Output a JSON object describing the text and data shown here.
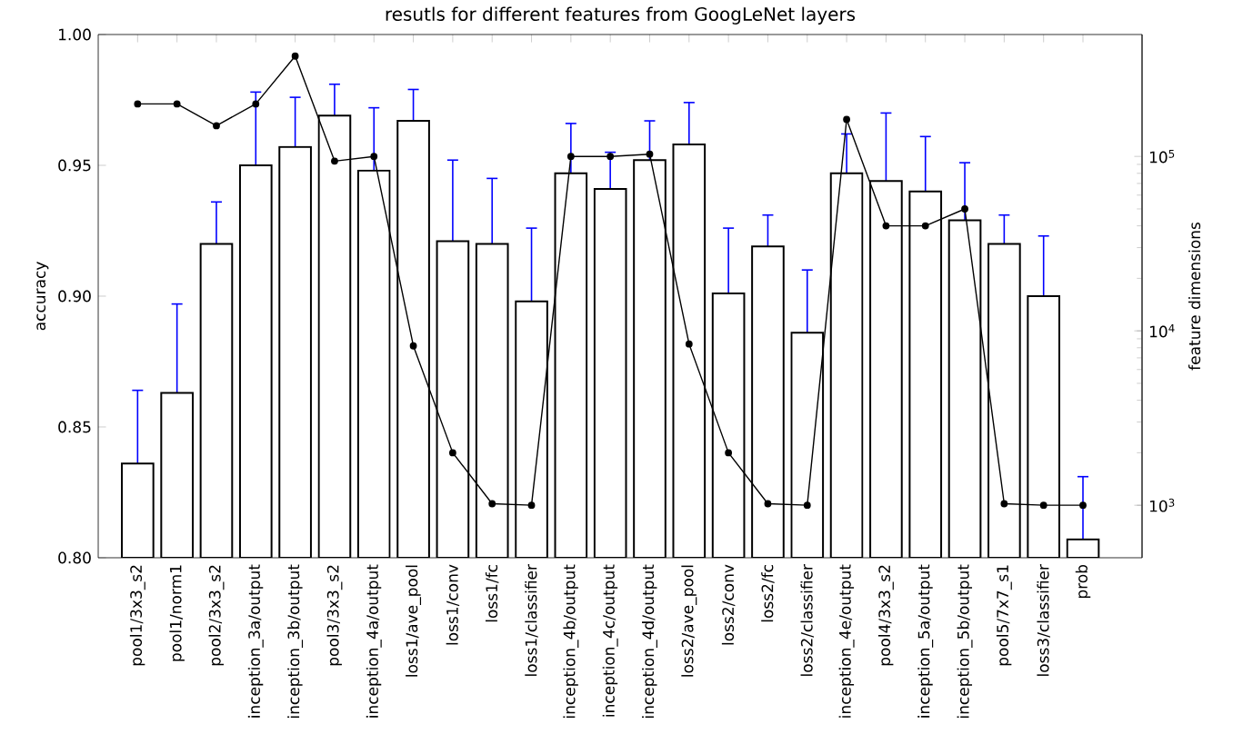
{
  "chart_data": {
    "type": "bar",
    "title": "resutls for different features from GoogLeNet layers",
    "ylabel": "accuracy",
    "y2label": "feature dimensions",
    "categories": [
      "pool1/3x3_s2",
      "pool1/norm1",
      "pool2/3x3_s2",
      "inception_3a/output",
      "inception_3b/output",
      "pool3/3x3_s2",
      "inception_4a/output",
      "loss1/ave_pool",
      "loss1/conv",
      "loss1/fc",
      "loss1/classifier",
      "inception_4b/output",
      "inception_4c/output",
      "inception_4d/output",
      "loss2/ave_pool",
      "loss2/conv",
      "loss2/fc",
      "loss2/classifier",
      "inception_4e/output",
      "pool4/3x3_s2",
      "inception_5a/output",
      "inception_5b/output",
      "pool5/7x7_s1",
      "loss3/classifier",
      "prob"
    ],
    "series": [
      {
        "color": "#ffffff",
        "values": [
          0.836,
          0.863,
          0.92,
          0.95,
          0.957,
          0.969,
          0.948,
          0.967,
          0.921,
          0.92,
          0.898,
          0.947,
          0.941,
          0.952,
          0.958,
          0.901,
          0.919,
          0.886,
          0.947,
          0.944,
          0.94,
          0.929,
          0.92,
          0.9,
          0.807
        ],
        "errors": [
          [
            0.836,
            0.864
          ],
          [
            0.863,
            0.897
          ],
          [
            0.92,
            0.936
          ],
          [
            0.95,
            0.978
          ],
          [
            0.957,
            0.976
          ],
          [
            0.969,
            0.981
          ],
          [
            0.948,
            0.972
          ],
          [
            0.967,
            0.979
          ],
          [
            0.921,
            0.952
          ],
          [
            0.92,
            0.945
          ],
          [
            0.898,
            0.926
          ],
          [
            0.947,
            0.966
          ],
          [
            0.941,
            0.955
          ],
          [
            0.952,
            0.967
          ],
          [
            0.958,
            0.974
          ],
          [
            0.901,
            0.926
          ],
          [
            0.919,
            0.931
          ],
          [
            0.886,
            0.91
          ],
          [
            0.947,
            0.962
          ],
          [
            0.944,
            0.97
          ],
          [
            0.94,
            0.961
          ],
          [
            0.929,
            0.951
          ],
          [
            0.92,
            0.931
          ],
          [
            0.9,
            0.923
          ],
          [
            0.807,
            0.831
          ]
        ]
      },
      {
        "type": "line",
        "axis": "y2",
        "color": "#000000",
        "marker": "circle",
        "values": [
          200000,
          200000,
          150000,
          200000,
          376000,
          94000,
          100000,
          8200,
          2000,
          1020,
          1000,
          100000,
          100000,
          103000,
          8400,
          2000,
          1020,
          1000,
          163000,
          40000,
          40000,
          50000,
          1020,
          1000,
          1000
        ]
      }
    ],
    "ylim": [
      0.8,
      1.0
    ],
    "yticks": [
      {
        "value": 0.8,
        "label": "0.80"
      },
      0.85,
      {
        "value": 0.9,
        "label": "0.90"
      },
      0.95,
      {
        "value": 1.0,
        "label": "1.00"
      }
    ],
    "y2lim": [
      500,
      500000
    ],
    "y2ticks": [
      {
        "value": 1000,
        "label": "10$^{3}$"
      },
      {
        "value": 10000,
        "label": "10$^{4}$"
      },
      {
        "value": 100000,
        "label": "10$^{5}$"
      }
    ],
    "log": "y2"
  }
}
